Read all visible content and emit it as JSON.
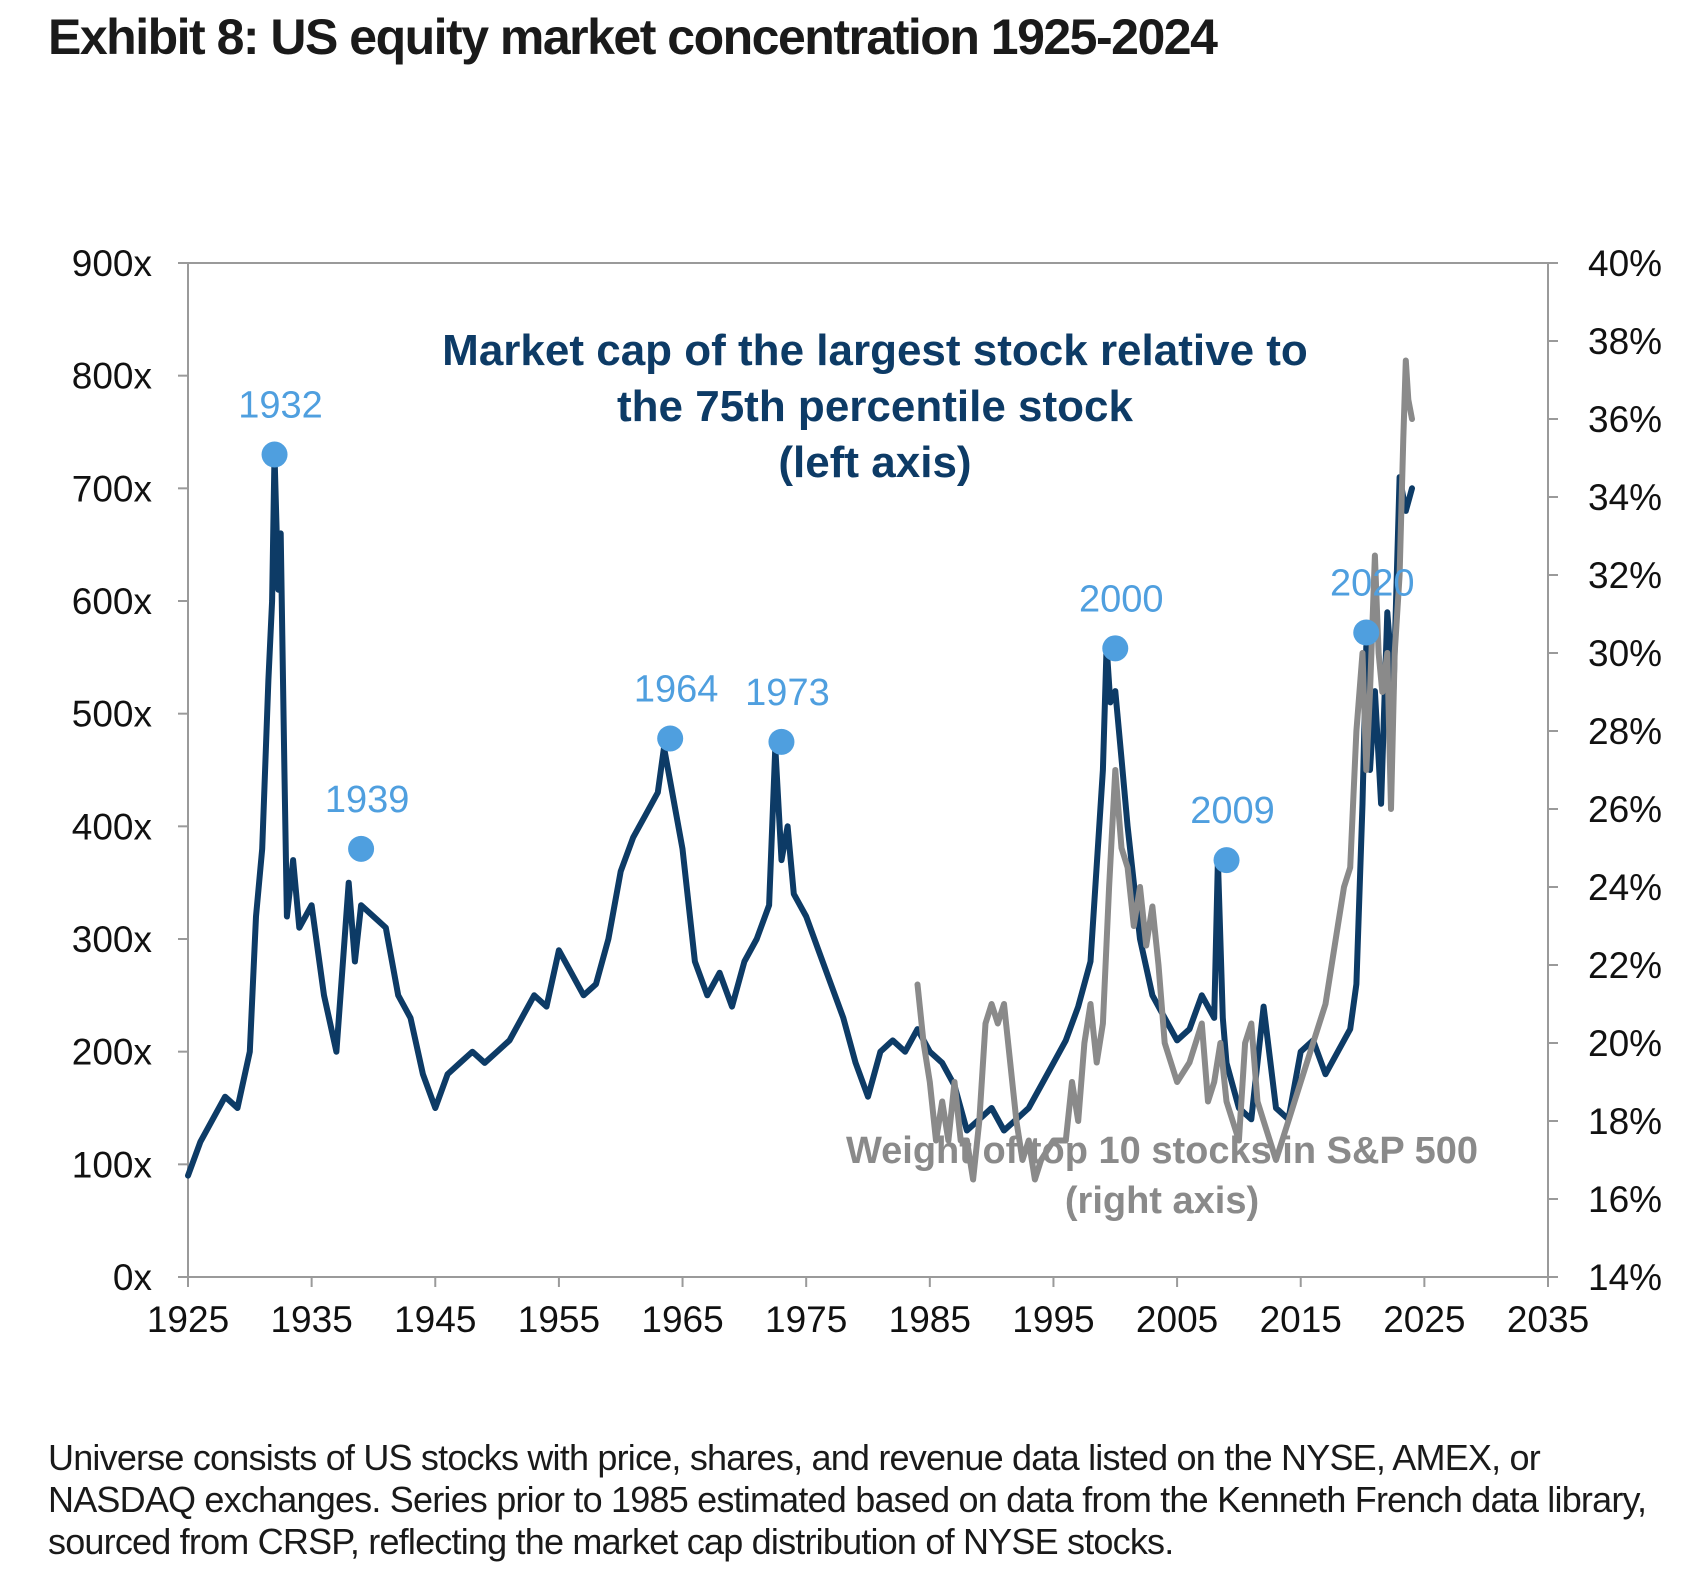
{
  "title": "Exhibit 8: US equity market concentration 1925-2024",
  "footnote": "Universe consists of US stocks with price, shares, and revenue data listed on the NYSE, AMEX, or NASDAQ exchanges. Series prior to 1985 estimated based on data from the Kenneth French data library, sourced from CRSP, reflecting the market cap distribution of NYSE stocks.",
  "colors": {
    "left_series": "#0d3b66",
    "right_series": "#8a8a8a",
    "peak_markers": "#4f9fdf",
    "axis": "#9a9a9a"
  },
  "chart_data": {
    "type": "line",
    "xlim": [
      1925,
      2035
    ],
    "x_ticks": [
      1925,
      1935,
      1945,
      1955,
      1965,
      1975,
      1985,
      1995,
      2005,
      2015,
      2025,
      2035
    ],
    "x_tick_labels": [
      "1925",
      "1935",
      "1945",
      "1955",
      "1965",
      "1975",
      "1985",
      "1995",
      "2005",
      "2015",
      "2025",
      "2035"
    ],
    "y_left": {
      "range": [
        0,
        900
      ],
      "ticks": [
        0,
        100,
        200,
        300,
        400,
        500,
        600,
        700,
        800,
        900
      ],
      "tick_labels": [
        "0x",
        "100x",
        "200x",
        "300x",
        "400x",
        "500x",
        "600x",
        "700x",
        "800x",
        "900x"
      ]
    },
    "y_right": {
      "range": [
        14,
        40
      ],
      "ticks": [
        14,
        16,
        18,
        20,
        22,
        24,
        26,
        28,
        30,
        32,
        34,
        36,
        38,
        40
      ],
      "tick_labels": [
        "14%",
        "16%",
        "18%",
        "20%",
        "22%",
        "24%",
        "26%",
        "28%",
        "30%",
        "32%",
        "34%",
        "36%",
        "38%",
        "40%"
      ]
    },
    "grid": false,
    "series": [
      {
        "name": "Market cap of the largest stock relative to the 75th percentile stock (left axis)",
        "axis": "left",
        "x": [
          1925,
          1926,
          1927,
          1928,
          1929,
          1930,
          1930.5,
          1931,
          1931.5,
          1931.8,
          1932,
          1932.3,
          1932.5,
          1932.8,
          1933,
          1933.5,
          1934,
          1935,
          1936,
          1937,
          1938,
          1938.5,
          1939,
          1940,
          1941,
          1942,
          1943,
          1944,
          1945,
          1946,
          1947,
          1948,
          1949,
          1950,
          1951,
          1952,
          1953,
          1954,
          1955,
          1956,
          1957,
          1958,
          1959,
          1960,
          1961,
          1962,
          1963,
          1963.5,
          1964,
          1965,
          1966,
          1967,
          1968,
          1969,
          1970,
          1971,
          1972,
          1972.5,
          1973,
          1973.5,
          1974,
          1975,
          1976,
          1977,
          1978,
          1979,
          1980,
          1981,
          1982,
          1983,
          1984,
          1985,
          1986,
          1987,
          1988,
          1989,
          1990,
          1991,
          1992,
          1993,
          1994,
          1995,
          1996,
          1997,
          1998,
          1999,
          1999.3,
          1999.6,
          2000,
          2000.5,
          2001,
          2002,
          2003,
          2004,
          2005,
          2006,
          2007,
          2008,
          2008.3,
          2008.7,
          2009,
          2010,
          2011,
          2012,
          2013,
          2014,
          2015,
          2016,
          2017,
          2018,
          2019,
          2019.5,
          2020,
          2020.3,
          2020.6,
          2021,
          2021.5,
          2022,
          2022.5,
          2023,
          2023.5,
          2024
        ],
        "values": [
          90,
          120,
          140,
          160,
          150,
          200,
          320,
          380,
          530,
          600,
          730,
          610,
          660,
          450,
          320,
          370,
          310,
          330,
          250,
          200,
          350,
          280,
          330,
          320,
          310,
          250,
          230,
          180,
          150,
          180,
          190,
          200,
          190,
          200,
          210,
          230,
          250,
          240,
          290,
          270,
          250,
          260,
          300,
          360,
          390,
          410,
          430,
          470,
          440,
          380,
          280,
          250,
          270,
          240,
          280,
          300,
          330,
          470,
          370,
          400,
          340,
          320,
          290,
          260,
          230,
          190,
          160,
          200,
          210,
          200,
          220,
          200,
          190,
          170,
          130,
          140,
          150,
          130,
          140,
          150,
          170,
          190,
          210,
          240,
          280,
          450,
          560,
          510,
          520,
          460,
          400,
          300,
          250,
          230,
          210,
          220,
          250,
          230,
          370,
          230,
          190,
          150,
          140,
          240,
          150,
          140,
          200,
          210,
          180,
          200,
          220,
          260,
          420,
          560,
          450,
          520,
          420,
          590,
          520,
          710,
          680,
          700
        ]
      },
      {
        "name": "Weight of top 10 stocks in S&P 500 (right axis)",
        "axis": "right",
        "x": [
          1984,
          1984.5,
          1985,
          1985.5,
          1986,
          1986.5,
          1987,
          1987.5,
          1988,
          1988.5,
          1989,
          1989.5,
          1990,
          1990.5,
          1991,
          1991.5,
          1992,
          1992.5,
          1993,
          1993.5,
          1994,
          1995,
          1996,
          1996.5,
          1997,
          1997.5,
          1998,
          1998.5,
          1999,
          1999.5,
          2000,
          2000.5,
          2001,
          2001.5,
          2002,
          2002.5,
          2003,
          2003.5,
          2004,
          2005,
          2006,
          2007,
          2007.5,
          2008,
          2008.5,
          2009,
          2010,
          2010.5,
          2011,
          2011.5,
          2012,
          2012.5,
          2013,
          2014,
          2015,
          2016,
          2017,
          2018,
          2018.5,
          2019,
          2019.5,
          2020,
          2020.3,
          2020.6,
          2021,
          2021.3,
          2021.6,
          2022,
          2022.3,
          2022.6,
          2023,
          2023.3,
          2023.5,
          2023.7,
          2024
        ],
        "values": [
          21.5,
          20.0,
          19.0,
          17.5,
          18.5,
          17.5,
          19.0,
          17.5,
          17.5,
          16.5,
          18.0,
          20.5,
          21.0,
          20.5,
          21.0,
          19.5,
          18.0,
          17.0,
          17.5,
          16.5,
          17.0,
          17.5,
          17.5,
          19.0,
          18.0,
          20.0,
          21.0,
          19.5,
          20.5,
          24.0,
          27.0,
          25.0,
          24.5,
          23.0,
          24.0,
          22.5,
          23.5,
          22.0,
          20.0,
          19.0,
          19.5,
          20.5,
          18.5,
          19.0,
          20.0,
          18.5,
          17.5,
          20.0,
          20.5,
          18.5,
          18.0,
          17.5,
          17.0,
          18.0,
          19.0,
          20.0,
          21.0,
          23.0,
          24.0,
          24.5,
          28.0,
          30.0,
          27.0,
          29.0,
          32.5,
          30.0,
          29.0,
          30.0,
          26.0,
          30.0,
          32.0,
          35.5,
          37.5,
          36.5,
          36.0
        ]
      }
    ],
    "annotations": [
      {
        "series": 0,
        "x": 1932,
        "y": 730,
        "text": "1932"
      },
      {
        "series": 0,
        "x": 1939,
        "y": 380,
        "text": "1939"
      },
      {
        "series": 0,
        "x": 1964,
        "y": 478,
        "text": "1964"
      },
      {
        "series": 0,
        "x": 1973,
        "y": 475,
        "text": "1973"
      },
      {
        "series": 0,
        "x": 2000,
        "y": 558,
        "text": "2000"
      },
      {
        "series": 0,
        "x": 2009,
        "y": 370,
        "text": "2009"
      },
      {
        "series": 0,
        "x": 2020.3,
        "y": 572,
        "text": "2020"
      }
    ],
    "series_labels": [
      {
        "lines": [
          "Market cap of the largest stock relative to",
          "the 75th percentile stock",
          "(left axis)"
        ]
      },
      {
        "lines": [
          "Weight of top 10 stocks in S&P 500",
          "(right axis)"
        ]
      }
    ]
  }
}
